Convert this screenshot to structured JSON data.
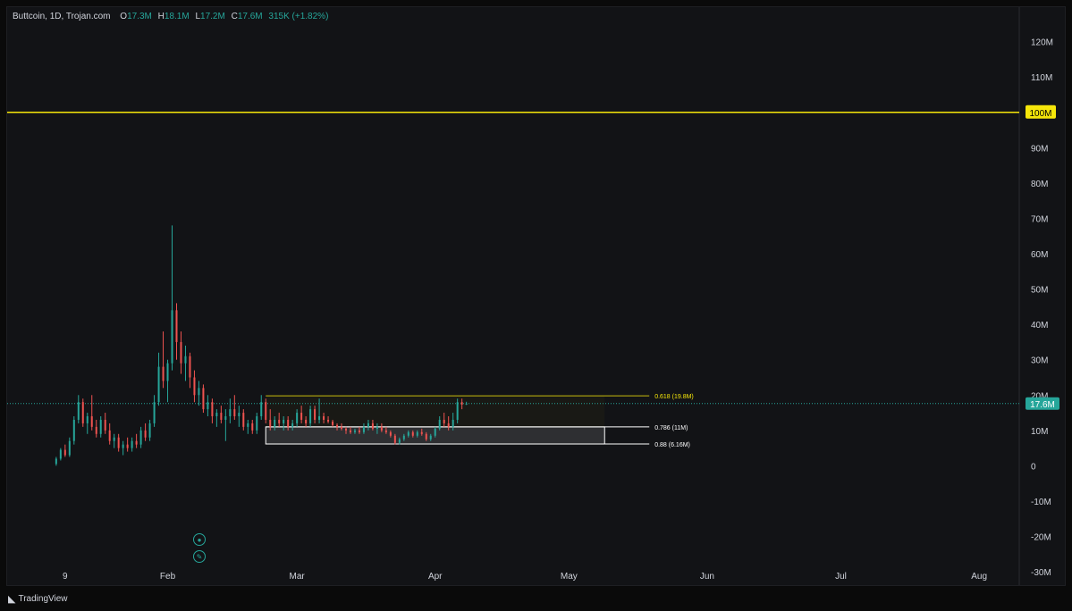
{
  "header": {
    "symbol": "Buttcoin, 1D, Trojan.com",
    "o_label": "O",
    "o_value": "17.3M",
    "h_label": "H",
    "h_value": "18.1M",
    "l_label": "L",
    "l_value": "17.2M",
    "c_label": "C",
    "c_value": "17.6M",
    "change": "315K (+1.82%)"
  },
  "footer": {
    "brand": "TradingView"
  },
  "colors": {
    "up": "#26a69a",
    "down": "#ef5350",
    "hline": "#f5e60a",
    "fib_618": "#f5e60a",
    "fib_box": "#ffffff",
    "price_line": "#26a69a"
  },
  "icons": [
    "lock-icon",
    "pencil-icon"
  ],
  "chart_data": {
    "type": "candlestick",
    "title": "",
    "xlabel": "",
    "ylabel": "",
    "x_ticks": [
      "9",
      "Feb",
      "Mar",
      "Apr",
      "May",
      "Jun",
      "Jul",
      "Aug"
    ],
    "y_ticks": [
      "120M",
      "110M",
      "100M",
      "90M",
      "80M",
      "70M",
      "60M",
      "50M",
      "40M",
      "30M",
      "20M",
      "10M",
      "0",
      "-10M",
      "-20M",
      "-30M"
    ],
    "y_tick_values": [
      120,
      110,
      100,
      90,
      80,
      70,
      60,
      50,
      40,
      30,
      20,
      10,
      0,
      -10,
      -20,
      -30
    ],
    "ylim": [
      -32,
      128
    ],
    "unit": "M",
    "current_price": 17.6,
    "current_price_label": "17.6M",
    "horizontal_line": {
      "value": 100,
      "label": "100M"
    },
    "fib_levels": [
      {
        "ratio": "0.618 (19.8M)",
        "value": 19.8
      },
      {
        "ratio": "0.786 (11M)",
        "value": 11
      },
      {
        "ratio": "0.88 (6.16M)",
        "value": 6.16
      }
    ],
    "dates": {
      "first": "2024-01-07",
      "last": "2024-05-11"
    },
    "x_tick_dates": [
      "2024-01-09",
      "2024-02-01",
      "2024-03-01",
      "2024-04-01",
      "2024-05-01",
      "2024-06-01",
      "2024-07-01",
      "2024-08-01"
    ],
    "x_range_dates": [
      "2023-12-27",
      "2024-08-10"
    ],
    "fib_range_dates": [
      "2024-02-23",
      "2024-05-11"
    ],
    "fib_box_end_date": "2024-05-09",
    "ohlc": [
      [
        0.5,
        2.5,
        0,
        2
      ],
      [
        2,
        5,
        1.5,
        4.5
      ],
      [
        4.5,
        6,
        2.5,
        3
      ],
      [
        3,
        8,
        2.5,
        7
      ],
      [
        7,
        14,
        6,
        13
      ],
      [
        13,
        20,
        12,
        18
      ],
      [
        18,
        19,
        11,
        12
      ],
      [
        12,
        15,
        9,
        14
      ],
      [
        14,
        20,
        10,
        11
      ],
      [
        11,
        13,
        8,
        9
      ],
      [
        9,
        14,
        8,
        13
      ],
      [
        13,
        15,
        9,
        10
      ],
      [
        10,
        12,
        6,
        7
      ],
      [
        7,
        9,
        5,
        8
      ],
      [
        8,
        9,
        4,
        5
      ],
      [
        5,
        7,
        3,
        6
      ],
      [
        6,
        8,
        4,
        5
      ],
      [
        5,
        8,
        4,
        7
      ],
      [
        7,
        9,
        5,
        6
      ],
      [
        6,
        11,
        5,
        10
      ],
      [
        10,
        12,
        7,
        8
      ],
      [
        8,
        13,
        7,
        12
      ],
      [
        12,
        20,
        11,
        18
      ],
      [
        18,
        32,
        17,
        28
      ],
      [
        28,
        38,
        22,
        24
      ],
      [
        24,
        30,
        18,
        29
      ],
      [
        29,
        68,
        27,
        44
      ],
      [
        44,
        46,
        30,
        35
      ],
      [
        35,
        38,
        26,
        29
      ],
      [
        29,
        34,
        24,
        31
      ],
      [
        31,
        32,
        22,
        25
      ],
      [
        25,
        27,
        18,
        20
      ],
      [
        20,
        24,
        17,
        22
      ],
      [
        22,
        23,
        15,
        16
      ],
      [
        16,
        20,
        14,
        18
      ],
      [
        18,
        19,
        12,
        14
      ],
      [
        14,
        16,
        11,
        15
      ],
      [
        15,
        17,
        12,
        13
      ],
      [
        13,
        16,
        7,
        14
      ],
      [
        14,
        19,
        12,
        16
      ],
      [
        16,
        20,
        13,
        14
      ],
      [
        14,
        17,
        11,
        15
      ],
      [
        15,
        16,
        10,
        11
      ],
      [
        11,
        13,
        9,
        12
      ],
      [
        12,
        13,
        9,
        10
      ],
      [
        10,
        15,
        9,
        14
      ],
      [
        14,
        20,
        13,
        18
      ],
      [
        18,
        19,
        12,
        13
      ],
      [
        13,
        16,
        10,
        11
      ],
      [
        11,
        14,
        10,
        13
      ],
      [
        13,
        15,
        11,
        12
      ],
      [
        12,
        14,
        10,
        13
      ],
      [
        13,
        14,
        10,
        11
      ],
      [
        11,
        13,
        10,
        12
      ],
      [
        12,
        16,
        11,
        15
      ],
      [
        15,
        17,
        12,
        13
      ],
      [
        13,
        14,
        11,
        12
      ],
      [
        12,
        17,
        11,
        16
      ],
      [
        16,
        17,
        12,
        13
      ],
      [
        13,
        19,
        12,
        14
      ],
      [
        14,
        15,
        12,
        13
      ],
      [
        13,
        14,
        12,
        12.5
      ],
      [
        12.5,
        13,
        11,
        11.5
      ],
      [
        11.5,
        12,
        10,
        11
      ],
      [
        11,
        12,
        10,
        10.5
      ],
      [
        10.5,
        11,
        9,
        10
      ],
      [
        10,
        11,
        9,
        9.5
      ],
      [
        9.5,
        10.5,
        9,
        10
      ],
      [
        10,
        11,
        9,
        9.5
      ],
      [
        9.5,
        12,
        9,
        11
      ],
      [
        11,
        13,
        10,
        12
      ],
      [
        12,
        13,
        10,
        10.5
      ],
      [
        10.5,
        12,
        9,
        11
      ],
      [
        11,
        12,
        9.5,
        10
      ],
      [
        10,
        11,
        9,
        9.5
      ],
      [
        9.5,
        10,
        8,
        8.5
      ],
      [
        8.5,
        9,
        6,
        6.5
      ],
      [
        6.5,
        8,
        6,
        7.5
      ],
      [
        7.5,
        9,
        7,
        8.5
      ],
      [
        8.5,
        10,
        8,
        9.5
      ],
      [
        9.5,
        10,
        8,
        8.5
      ],
      [
        8.5,
        10,
        8,
        9.5
      ],
      [
        9.5,
        10.5,
        8.5,
        9
      ],
      [
        9,
        9.5,
        7,
        7.5
      ],
      [
        7.5,
        9,
        7,
        8.5
      ],
      [
        8.5,
        11,
        8,
        10.5
      ],
      [
        10.5,
        14,
        10,
        13
      ],
      [
        13,
        15,
        11,
        12
      ],
      [
        12,
        14,
        10,
        11
      ],
      [
        11,
        15,
        10,
        13
      ],
      [
        13,
        19,
        12,
        18
      ],
      [
        18,
        19,
        16,
        17.3
      ],
      [
        17.3,
        18.1,
        17.2,
        17.6
      ]
    ]
  }
}
